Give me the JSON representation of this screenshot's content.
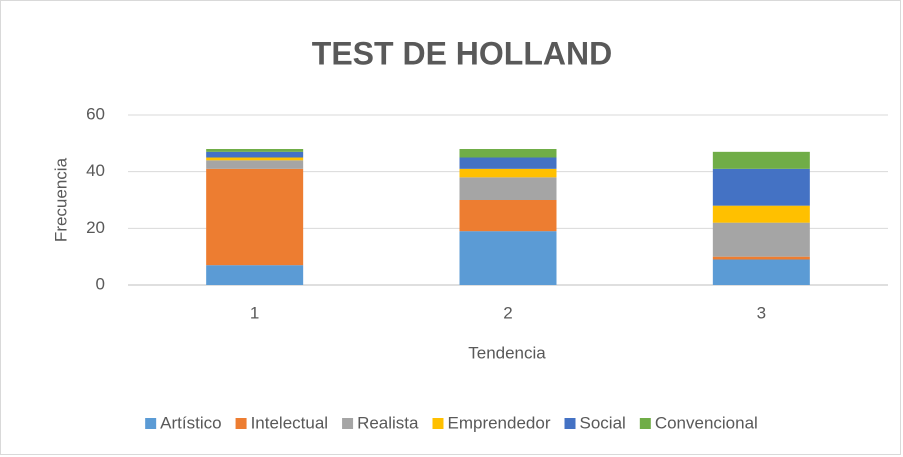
{
  "chart_data": {
    "type": "stacked_bar",
    "title": "TEST DE HOLLAND",
    "x_label": "Tendencia",
    "y_label": "Frecuencia",
    "categories": [
      "1",
      "2",
      "3"
    ],
    "series": [
      {
        "name": "Artístico",
        "color": "#5b9bd5",
        "values": [
          7,
          19,
          9
        ]
      },
      {
        "name": "Intelectual",
        "color": "#ed7d31",
        "values": [
          34,
          11,
          1
        ]
      },
      {
        "name": "Realista",
        "color": "#a5a5a5",
        "values": [
          3,
          8,
          12
        ]
      },
      {
        "name": "Emprendedor",
        "color": "#ffc000",
        "values": [
          1,
          3,
          6
        ]
      },
      {
        "name": "Social",
        "color": "#4472c4",
        "values": [
          2,
          4,
          13
        ]
      },
      {
        "name": "Convencional",
        "color": "#70ad47",
        "values": [
          1,
          3,
          6
        ]
      }
    ],
    "ylim": [
      0,
      60
    ],
    "yticks": [
      0,
      20,
      40,
      60
    ],
    "grid": true,
    "legend": "bottom"
  }
}
